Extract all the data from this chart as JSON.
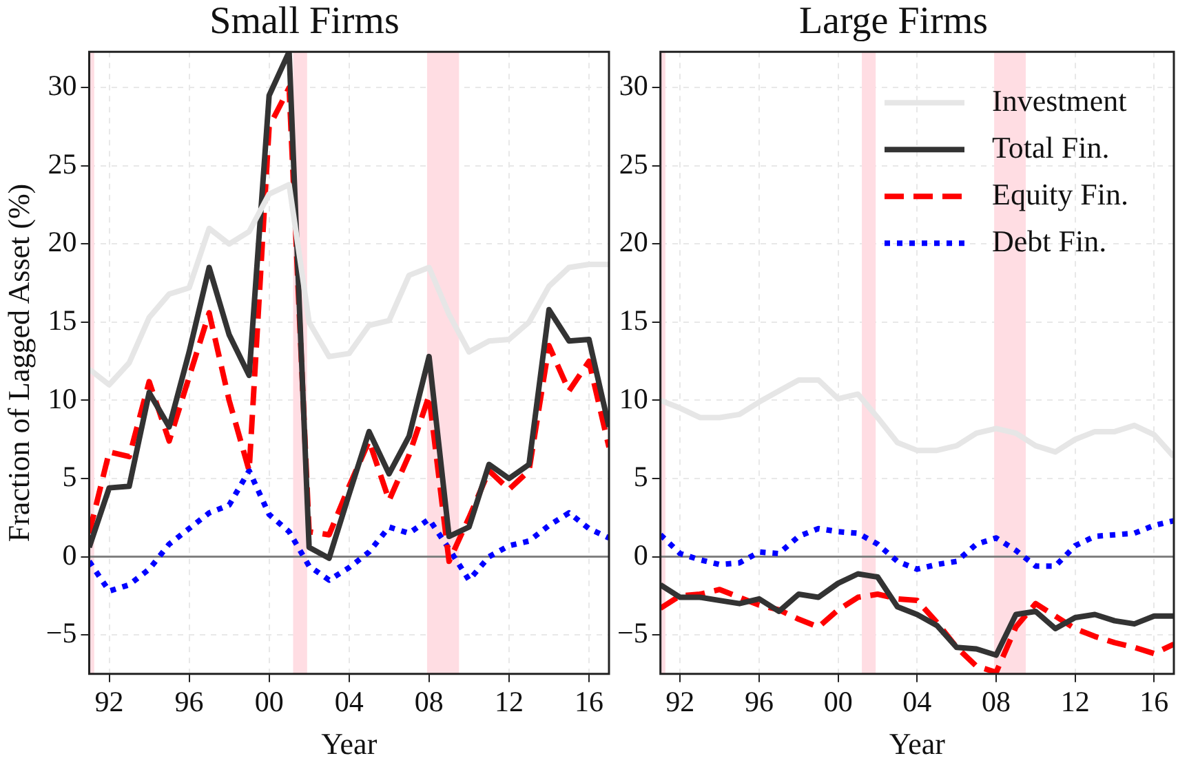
{
  "chart_data": [
    {
      "type": "line",
      "title": "Small Firms",
      "xlabel": "Year",
      "ylabel": "Fraction of Lagged Asset (%)",
      "x": [
        1991,
        1992,
        1993,
        1994,
        1995,
        1996,
        1997,
        1998,
        1999,
        2000,
        2001,
        2002,
        2003,
        2004,
        2005,
        2006,
        2007,
        2008,
        2009,
        2010,
        2011,
        2012,
        2013,
        2014,
        2015,
        2016,
        2017
      ],
      "series": [
        {
          "color": "#e6e6e6",
          "line_style": "solid",
          "values": [
            12,
            11,
            12.4,
            15.3,
            16.8,
            17.2,
            21.0,
            20.0,
            20.8,
            23.2,
            23.8,
            15,
            12.8,
            13,
            14.8,
            15.1,
            18,
            18.5,
            15.5,
            13.1,
            13.8,
            13.9,
            15,
            17.3,
            18.5,
            18.7,
            18.7
          ]
        },
        {
          "color": "#333333",
          "line_style": "solid",
          "values": [
            0.6,
            4.4,
            4.5,
            10.5,
            8.3,
            13.1,
            18.5,
            14.2,
            11.6,
            29.5,
            32.3,
            0.6,
            -0.1,
            4,
            8,
            5.3,
            7.7,
            12.8,
            1.3,
            1.9,
            5.9,
            5.0,
            5.9,
            15.8,
            13.8,
            13.9,
            8.3
          ]
        },
        {
          "color": "#ff0000",
          "line_style": "dashed",
          "values": [
            1.5,
            6.7,
            6.4,
            11.2,
            7.4,
            11.5,
            15.6,
            10.0,
            5.5,
            27.5,
            30.0,
            1.6,
            1.4,
            4.5,
            7.4,
            3.6,
            6.5,
            10.3,
            -0.3,
            2.5,
            5.5,
            4.3,
            5.5,
            13.5,
            10.6,
            12.5,
            7.0
          ]
        },
        {
          "color": "#0000ff",
          "line_style": "dotted",
          "values": [
            -0.3,
            -2.2,
            -1.8,
            -0.8,
            0.8,
            1.8,
            2.8,
            3.3,
            5.5,
            2.7,
            1.6,
            -0.6,
            -1.5,
            -0.7,
            0.3,
            1.9,
            1.5,
            2.4,
            0.5,
            -1.5,
            0.0,
            0.7,
            1.0,
            2.0,
            2.8,
            1.8,
            1.2
          ]
        }
      ],
      "xlim": [
        1991,
        2017
      ],
      "xticks": [
        {
          "value": 1992,
          "label": "92"
        },
        {
          "value": 1996,
          "label": "96"
        },
        {
          "value": 2000,
          "label": "00"
        },
        {
          "value": 2004,
          "label": "04"
        },
        {
          "value": 2008,
          "label": "08"
        },
        {
          "value": 2012,
          "label": "12"
        },
        {
          "value": 2016,
          "label": "16"
        }
      ],
      "ylim": [
        -7.5,
        32.3
      ],
      "yticks": [
        {
          "value": -5,
          "label": "−5"
        },
        0,
        5,
        10,
        15,
        20,
        25,
        30
      ],
      "grid": true,
      "legend": false,
      "ref_lines": [
        {
          "axis": "y",
          "value": 0,
          "color": "#808080"
        }
      ],
      "bands": [
        {
          "axis": "x",
          "from": 1991,
          "to": 1991.25,
          "color": "#ffdde3"
        },
        {
          "axis": "x",
          "from": 2001.2,
          "to": 2001.9,
          "color": "#ffdde3"
        },
        {
          "axis": "x",
          "from": 2007.9,
          "to": 2009.5,
          "color": "#ffdde3"
        }
      ]
    },
    {
      "type": "line",
      "title": "Large Firms",
      "xlabel": "Year",
      "x": [
        1991,
        1992,
        1993,
        1994,
        1995,
        1996,
        1997,
        1998,
        1999,
        2000,
        2001,
        2002,
        2003,
        2004,
        2005,
        2006,
        2007,
        2008,
        2009,
        2010,
        2011,
        2012,
        2013,
        2014,
        2015,
        2016,
        2017
      ],
      "series": [
        {
          "name": "Investment",
          "color": "#e6e6e6",
          "line_style": "solid",
          "values": [
            10,
            9.5,
            8.9,
            8.9,
            9.1,
            9.9,
            10.6,
            11.3,
            11.3,
            10.1,
            10.4,
            8.9,
            7.3,
            6.8,
            6.8,
            7.1,
            7.9,
            8.2,
            7.9,
            7.1,
            6.7,
            7.5,
            8.0,
            8.0,
            8.4,
            7.8,
            6.4
          ]
        },
        {
          "name": "Total Fin.",
          "color": "#333333",
          "line_style": "solid",
          "values": [
            -1.8,
            -2.6,
            -2.6,
            -2.8,
            -3.0,
            -2.7,
            -3.5,
            -2.4,
            -2.6,
            -1.7,
            -1.1,
            -1.3,
            -3.2,
            -3.7,
            -4.4,
            -5.8,
            -5.9,
            -6.3,
            -3.7,
            -3.5,
            -4.6,
            -3.9,
            -3.7,
            -4.1,
            -4.3,
            -3.8,
            -3.8
          ]
        },
        {
          "name": "Equity Fin.",
          "color": "#ff0000",
          "line_style": "dashed",
          "values": [
            -3.3,
            -2.5,
            -2.4,
            -2.1,
            -2.6,
            -3.1,
            -3.4,
            -4.0,
            -4.5,
            -3.4,
            -2.6,
            -2.4,
            -2.7,
            -2.8,
            -4.2,
            -5.8,
            -7.0,
            -7.4,
            -4.5,
            -3.0,
            -3.8,
            -4.6,
            -5.1,
            -5.5,
            -5.8,
            -6.2,
            -5.6
          ]
        },
        {
          "name": "Debt Fin.",
          "color": "#0000ff",
          "line_style": "dotted",
          "values": [
            1.4,
            0.2,
            -0.2,
            -0.5,
            -0.4,
            0.3,
            0.2,
            1.3,
            1.8,
            1.6,
            1.5,
            0.8,
            -0.3,
            -0.8,
            -0.5,
            -0.3,
            0.8,
            1.2,
            0.4,
            -0.6,
            -0.6,
            0.7,
            1.3,
            1.4,
            1.5,
            2.0,
            2.3
          ]
        }
      ],
      "xlim": [
        1991,
        2017
      ],
      "xticks": [
        {
          "value": 1992,
          "label": "92"
        },
        {
          "value": 1996,
          "label": "96"
        },
        {
          "value": 2000,
          "label": "00"
        },
        {
          "value": 2004,
          "label": "04"
        },
        {
          "value": 2008,
          "label": "08"
        },
        {
          "value": 2012,
          "label": "12"
        },
        {
          "value": 2016,
          "label": "16"
        }
      ],
      "ylim": [
        -7.5,
        32.3
      ],
      "yticks": [
        {
          "value": -5,
          "label": "−5"
        },
        0,
        5,
        10,
        15,
        20,
        25,
        30
      ],
      "grid": true,
      "legend": "top right",
      "ref_lines": [
        {
          "axis": "y",
          "value": 0,
          "color": "#808080"
        }
      ],
      "bands": [
        {
          "axis": "x",
          "from": 1991,
          "to": 1991.25,
          "color": "#ffdde3"
        },
        {
          "axis": "x",
          "from": 2001.2,
          "to": 2001.9,
          "color": "#ffdde3"
        },
        {
          "axis": "x",
          "from": 2007.9,
          "to": 2009.5,
          "color": "#ffdde3"
        }
      ]
    }
  ]
}
